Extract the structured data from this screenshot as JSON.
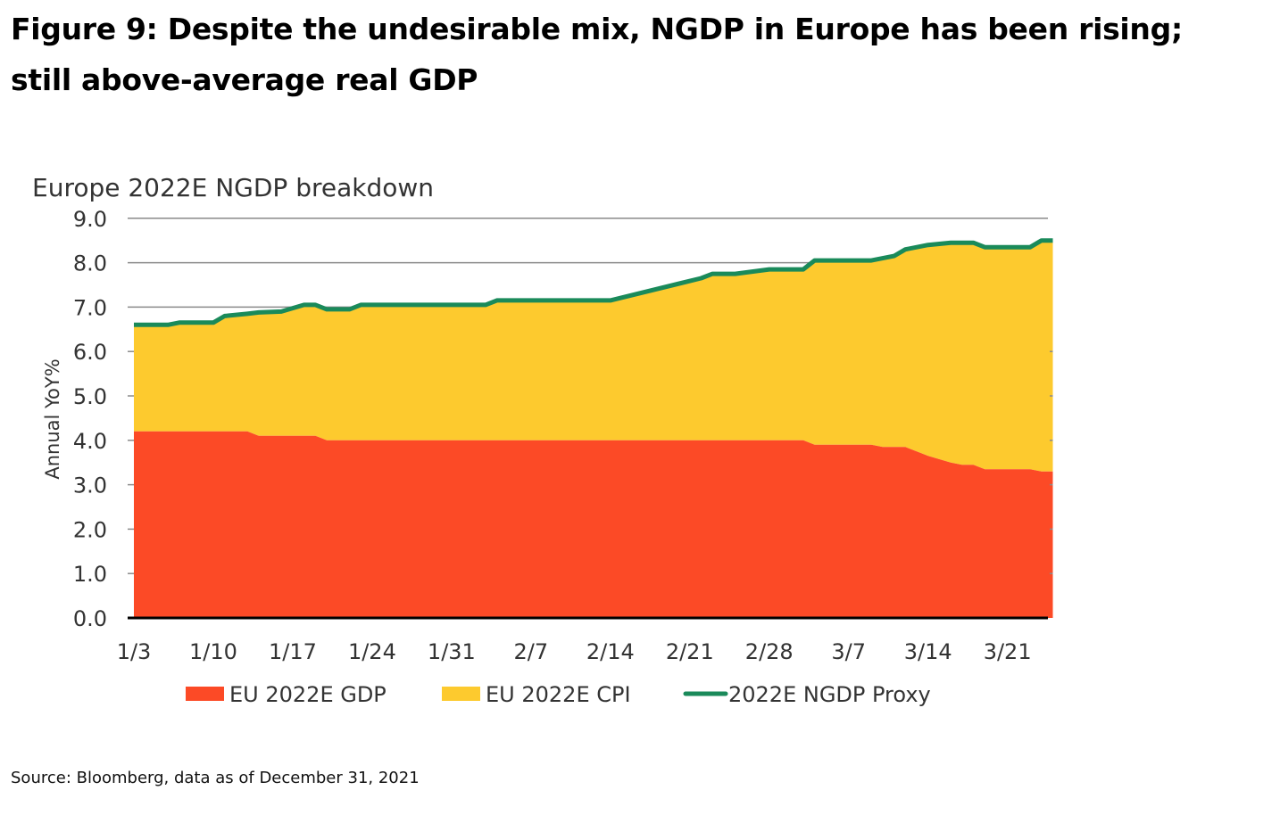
{
  "figure": {
    "title_line1": "Figure 9: Despite the undesirable mix, NGDP in Europe has been rising;",
    "title_line2": "still above-average real GDP",
    "source": "Source: Bloomberg, data as of December 31, 2021"
  },
  "chart_data": {
    "type": "area",
    "title": "Europe 2022E NGDP breakdown",
    "xlabel": "",
    "ylabel": "Annual YoY%",
    "ylim": [
      0,
      9
    ],
    "yticks": [
      "0.0",
      "1.0",
      "2.0",
      "3.0",
      "4.0",
      "5.0",
      "6.0",
      "7.0",
      "8.0",
      "9.0"
    ],
    "xtick_labels": [
      "1/3",
      "1/10",
      "1/17",
      "1/24",
      "1/31",
      "2/7",
      "2/14",
      "2/21",
      "2/28",
      "3/7",
      "3/14",
      "3/21"
    ],
    "x_unit": "days since 1/3",
    "x_range": [
      0,
      81
    ],
    "grid": "horizontal lines at 7.0, 8.0, 9.0",
    "legend_position": "bottom",
    "colors": {
      "gdp": "#FC4A26",
      "cpi": "#FDCA2E",
      "ngdp": "#1A8A5A",
      "axis": "#000000",
      "grid": "#8a8a8a"
    },
    "x": [
      0,
      3,
      4,
      7,
      8,
      10,
      11,
      13,
      15,
      16,
      17,
      18,
      19,
      20,
      31,
      32,
      39,
      42,
      50,
      51,
      53,
      56,
      59,
      60,
      65,
      66,
      67,
      68,
      70,
      72,
      73,
      74,
      75,
      77,
      79,
      80,
      81
    ],
    "series": [
      {
        "name": "EU 2022E GDP",
        "kind": "stacked-area",
        "values": [
          4.2,
          4.2,
          4.2,
          4.2,
          4.2,
          4.2,
          4.1,
          4.1,
          4.1,
          4.1,
          4.0,
          4.0,
          4.0,
          4.0,
          4.0,
          4.0,
          4.0,
          4.0,
          4.0,
          4.0,
          4.0,
          4.0,
          4.0,
          3.9,
          3.9,
          3.85,
          3.85,
          3.85,
          3.65,
          3.5,
          3.45,
          3.45,
          3.35,
          3.35,
          3.35,
          3.3,
          3.3
        ]
      },
      {
        "name": "EU 2022E CPI",
        "kind": "stacked-area",
        "values": [
          2.4,
          2.4,
          2.45,
          2.45,
          2.6,
          2.65,
          2.78,
          2.8,
          2.95,
          2.95,
          2.95,
          2.95,
          2.95,
          3.05,
          3.05,
          3.15,
          3.15,
          3.15,
          3.65,
          3.75,
          3.75,
          3.85,
          3.85,
          4.15,
          4.15,
          4.25,
          4.3,
          4.45,
          4.75,
          4.95,
          5.0,
          5.0,
          5.0,
          5.0,
          5.0,
          5.2,
          5.2
        ]
      },
      {
        "name": "2022E NGDP Proxy",
        "kind": "line",
        "values": [
          6.6,
          6.6,
          6.65,
          6.65,
          6.8,
          6.85,
          6.88,
          6.9,
          7.05,
          7.05,
          6.95,
          6.95,
          6.95,
          7.05,
          7.05,
          7.15,
          7.15,
          7.15,
          7.65,
          7.75,
          7.75,
          7.85,
          7.85,
          8.05,
          8.05,
          8.1,
          8.15,
          8.3,
          8.4,
          8.45,
          8.45,
          8.45,
          8.35,
          8.35,
          8.35,
          8.5,
          8.5
        ]
      }
    ],
    "legend": [
      "EU 2022E GDP",
      "EU 2022E CPI",
      "2022E NGDP Proxy"
    ]
  }
}
